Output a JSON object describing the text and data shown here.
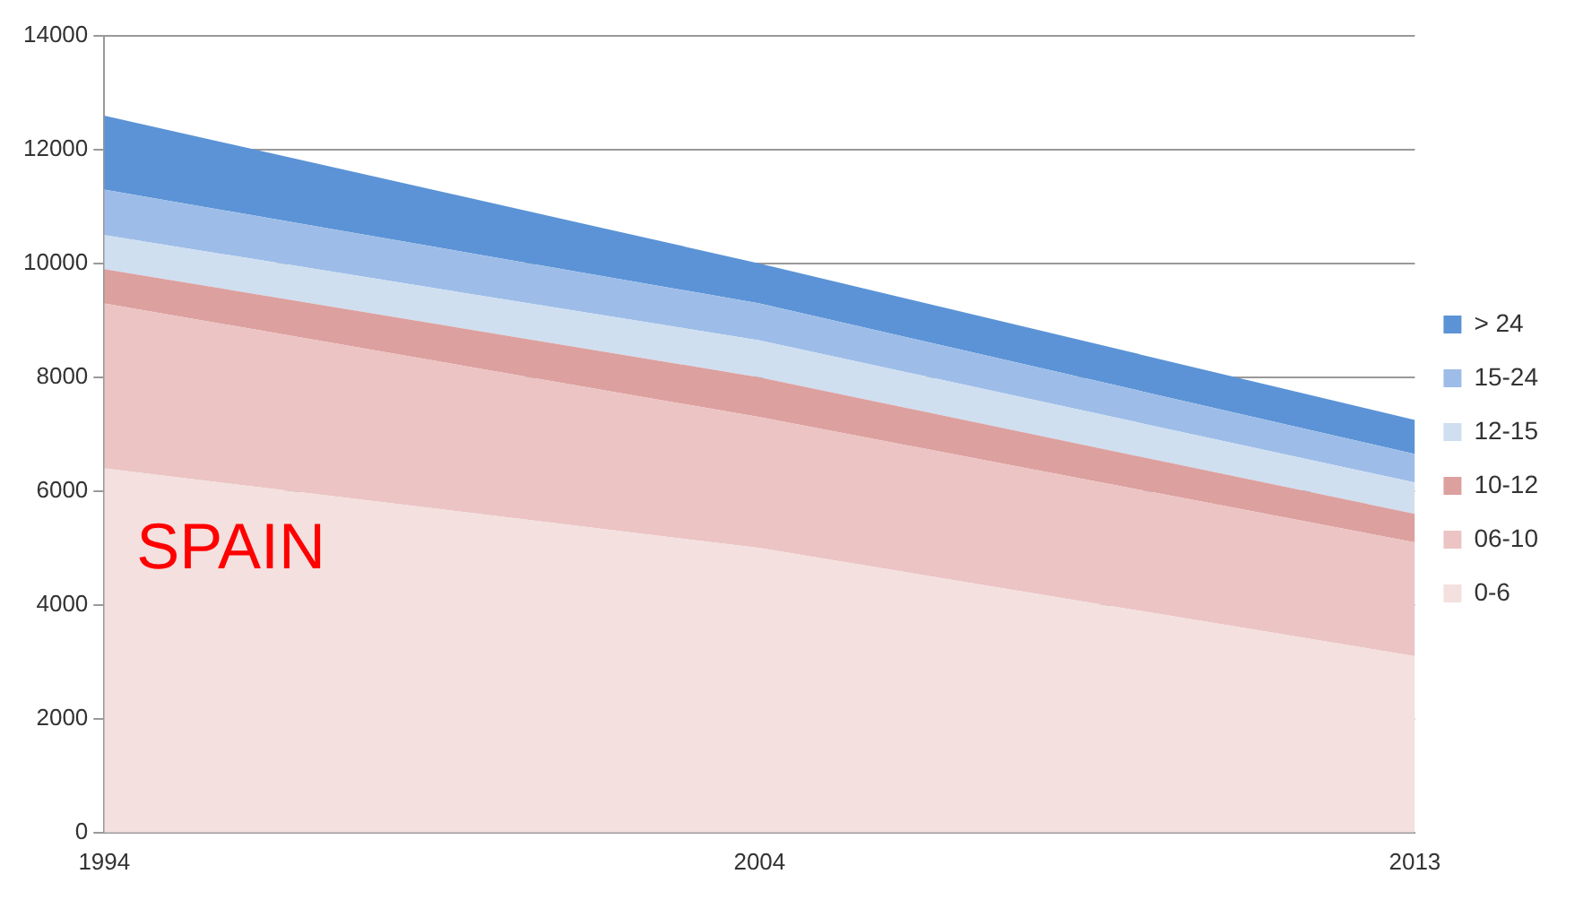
{
  "chart_data": {
    "type": "area",
    "stacked": true,
    "categories": [
      "1994",
      "2004",
      "2013"
    ],
    "series": [
      {
        "name": "0-6",
        "color": "#f3e0df",
        "values": [
          6400,
          5000,
          3100
        ]
      },
      {
        "name": "06-10",
        "color": "#ebc4c3",
        "values": [
          2900,
          2300,
          2000
        ]
      },
      {
        "name": "10-12",
        "color": "#dca09f",
        "values": [
          600,
          700,
          500
        ]
      },
      {
        "name": "12-15",
        "color": "#cfdff0",
        "values": [
          600,
          650,
          550
        ]
      },
      {
        "name": "15-24",
        "color": "#9dbde8",
        "values": [
          800,
          650,
          500
        ]
      },
      {
        "name": "> 24",
        "color": "#5b93d6",
        "values": [
          1300,
          700,
          600
        ]
      }
    ],
    "ylim": [
      0,
      14000
    ],
    "yticks": [
      0,
      2000,
      4000,
      6000,
      8000,
      10000,
      12000,
      14000
    ],
    "grid": "y",
    "legend": "right",
    "marker": "none",
    "annotations": [
      "SPAIN"
    ]
  }
}
